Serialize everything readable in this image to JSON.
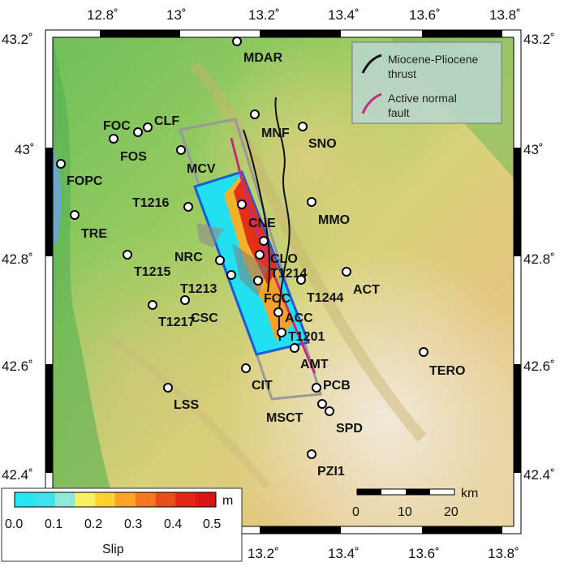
{
  "axes": {
    "lon_ticks": [
      "12.8˚",
      "13˚",
      "13.2˚",
      "13.4˚",
      "13.6˚",
      "13.8˚"
    ],
    "lat_ticks": [
      "43.2˚",
      "43˚",
      "42.8˚",
      "42.6˚",
      "42.4˚"
    ]
  },
  "legend": {
    "thrust_label_1": "Miocene-Pliocene",
    "thrust_label_2": "thrust",
    "normal_label_1": "Active normal",
    "normal_label_2": "fault",
    "thrust_color": "#111111",
    "normal_color": "#c0307a"
  },
  "scale_bar": {
    "unit": "km",
    "labels": [
      "0",
      "10",
      "20"
    ]
  },
  "colorbar": {
    "unit": "m",
    "title": "Slip",
    "tick_labels": [
      "0.0",
      "0.1",
      "0.2",
      "0.3",
      "0.4",
      "0.5"
    ],
    "colors": [
      "#22e6f0",
      "#40e0ee",
      "#8ee8d8",
      "#f7f060",
      "#fbd230",
      "#fba428",
      "#f47820",
      "#ea4c1c",
      "#e02418",
      "#d81414"
    ]
  },
  "stations": [
    {
      "name": "MDAR"
    },
    {
      "name": "CLF"
    },
    {
      "name": "FOC"
    },
    {
      "name": "FOS"
    },
    {
      "name": "MNF"
    },
    {
      "name": "SNO"
    },
    {
      "name": "FOPC"
    },
    {
      "name": "MCV"
    },
    {
      "name": "T1216"
    },
    {
      "name": "CNE"
    },
    {
      "name": "MMO"
    },
    {
      "name": "TRE"
    },
    {
      "name": "NRC"
    },
    {
      "name": "CLO"
    },
    {
      "name": "T1215"
    },
    {
      "name": "T1214"
    },
    {
      "name": "ACT"
    },
    {
      "name": "T1213"
    },
    {
      "name": "FCC"
    },
    {
      "name": "T1244"
    },
    {
      "name": "T1217"
    },
    {
      "name": "CSC"
    },
    {
      "name": "ACC"
    },
    {
      "name": "T1201"
    },
    {
      "name": "AMT"
    },
    {
      "name": "TERO"
    },
    {
      "name": "CIT"
    },
    {
      "name": "PCB"
    },
    {
      "name": "LSS"
    },
    {
      "name": "MSCT"
    },
    {
      "name": "SPD"
    },
    {
      "name": "PZI1"
    }
  ]
}
